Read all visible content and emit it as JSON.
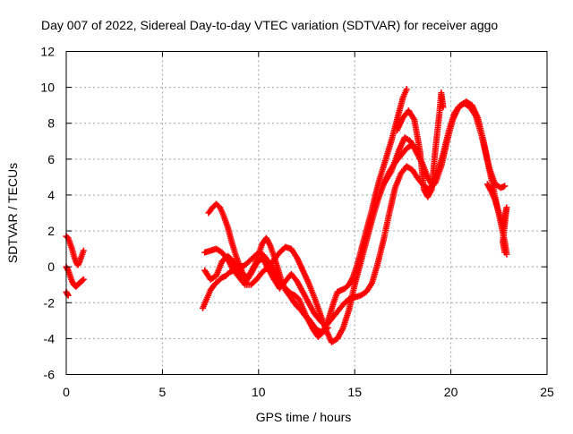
{
  "chart_data": {
    "type": "scatter",
    "title": "Day 007 of 2022, Sidereal Day-to-day VTEC variation (SDTVAR) for receiver aggo",
    "xlabel": "GPS time / hours",
    "ylabel": "SDTVAR / TECUs",
    "xlim": [
      0,
      25
    ],
    "ylim": [
      -6,
      12
    ],
    "xticks": [
      "0",
      "5",
      "10",
      "15",
      "20",
      "25"
    ],
    "yticks": [
      "-6",
      "-4",
      "-2",
      "0",
      "2",
      "4",
      "6",
      "8",
      "10",
      "12"
    ],
    "grid": true,
    "marker": "+",
    "color": "#ff0000",
    "series": [
      {
        "points": [
          [
            0.0,
            1.7
          ],
          [
            0.1,
            1.6
          ],
          [
            0.2,
            1.3
          ],
          [
            0.3,
            1.0
          ],
          [
            0.4,
            0.6
          ],
          [
            0.5,
            0.3
          ],
          [
            0.6,
            0.1
          ],
          [
            0.7,
            0.3
          ],
          [
            0.8,
            0.6
          ],
          [
            0.9,
            0.9
          ]
        ]
      },
      {
        "points": [
          [
            0.0,
            0.0
          ],
          [
            0.1,
            -0.2
          ],
          [
            0.2,
            -0.5
          ],
          [
            0.3,
            -0.8
          ],
          [
            0.4,
            -1.0
          ],
          [
            0.5,
            -1.1
          ],
          [
            0.6,
            -1.0
          ],
          [
            0.7,
            -0.9
          ],
          [
            0.8,
            -0.8
          ],
          [
            0.9,
            -0.7
          ]
        ]
      },
      {
        "points": [
          [
            0.0,
            -1.4
          ],
          [
            0.1,
            -1.6
          ]
        ]
      },
      {
        "points": [
          [
            7.1,
            -2.3
          ],
          [
            7.3,
            -1.8
          ],
          [
            7.5,
            -1.3
          ],
          [
            7.7,
            -1.0
          ],
          [
            7.9,
            -0.8
          ],
          [
            8.1,
            -0.6
          ],
          [
            8.3,
            -0.5
          ],
          [
            8.5,
            -0.3
          ],
          [
            8.7,
            -0.2
          ],
          [
            8.9,
            -0.1
          ],
          [
            9.1,
            0.0
          ],
          [
            9.3,
            0.1
          ],
          [
            9.5,
            0.3
          ],
          [
            9.7,
            0.5
          ],
          [
            9.9,
            0.7
          ],
          [
            10.1,
            0.8
          ],
          [
            10.3,
            0.6
          ],
          [
            10.5,
            0.3
          ],
          [
            10.7,
            0.0
          ],
          [
            10.9,
            -0.4
          ],
          [
            11.1,
            -0.8
          ],
          [
            11.3,
            -1.1
          ],
          [
            11.5,
            -1.3
          ],
          [
            11.7,
            -1.5
          ],
          [
            11.9,
            -1.6
          ],
          [
            12.1,
            -1.8
          ],
          [
            12.3,
            -2.3
          ],
          [
            12.5,
            -2.8
          ],
          [
            12.7,
            -3.2
          ],
          [
            12.9,
            -3.6
          ],
          [
            13.1,
            -3.9
          ],
          [
            13.3,
            -3.7
          ],
          [
            13.5,
            -3.3
          ],
          [
            13.7,
            -2.7
          ],
          [
            13.9,
            -2.0
          ],
          [
            14.1,
            -1.4
          ],
          [
            14.3,
            -1.3
          ],
          [
            14.5,
            -1.2
          ],
          [
            14.7,
            -1.0
          ],
          [
            14.9,
            -0.6
          ],
          [
            15.1,
            0.0
          ],
          [
            15.3,
            0.8
          ],
          [
            15.5,
            1.6
          ],
          [
            15.7,
            2.4
          ],
          [
            15.9,
            3.2
          ],
          [
            16.1,
            4.1
          ],
          [
            16.3,
            4.9
          ],
          [
            16.5,
            5.6
          ],
          [
            16.7,
            6.3
          ],
          [
            16.9,
            7.0
          ],
          [
            17.1,
            7.8
          ],
          [
            17.3,
            8.6
          ],
          [
            17.5,
            9.4
          ],
          [
            17.7,
            9.9
          ]
        ]
      },
      {
        "points": [
          [
            7.2,
            0.8
          ],
          [
            7.5,
            0.9
          ],
          [
            7.8,
            1.0
          ],
          [
            8.1,
            0.8
          ],
          [
            8.4,
            0.4
          ],
          [
            8.7,
            -0.2
          ],
          [
            9.0,
            -0.6
          ],
          [
            9.3,
            -1.0
          ],
          [
            9.6,
            -1.0
          ],
          [
            9.9,
            -0.7
          ],
          [
            10.2,
            -0.3
          ],
          [
            10.5,
            0.0
          ],
          [
            10.8,
            0.4
          ],
          [
            11.1,
            0.8
          ],
          [
            11.4,
            1.1
          ],
          [
            11.7,
            1.0
          ],
          [
            12.0,
            0.5
          ],
          [
            12.3,
            -0.2
          ],
          [
            12.6,
            -0.9
          ],
          [
            12.9,
            -1.7
          ],
          [
            13.2,
            -2.6
          ],
          [
            13.5,
            -3.5
          ],
          [
            13.8,
            -4.2
          ],
          [
            14.1,
            -4.0
          ],
          [
            14.4,
            -3.4
          ],
          [
            14.7,
            -2.4
          ],
          [
            15.0,
            -1.0
          ],
          [
            15.3,
            0.2
          ],
          [
            15.6,
            1.4
          ],
          [
            15.9,
            2.6
          ],
          [
            16.2,
            3.7
          ],
          [
            16.5,
            4.6
          ],
          [
            16.8,
            5.3
          ],
          [
            17.1,
            5.8
          ],
          [
            17.4,
            6.2
          ],
          [
            17.7,
            6.6
          ],
          [
            18.0,
            6.8
          ],
          [
            18.3,
            6.5
          ]
        ]
      },
      {
        "points": [
          [
            7.2,
            -0.2
          ],
          [
            7.5,
            -0.7
          ],
          [
            7.8,
            -0.5
          ],
          [
            8.1,
            0.3
          ],
          [
            8.4,
            0.6
          ],
          [
            8.7,
            0.3
          ],
          [
            9.0,
            -0.4
          ],
          [
            9.3,
            -0.9
          ],
          [
            9.6,
            -0.4
          ],
          [
            9.9,
            0.2
          ],
          [
            10.2,
            0.5
          ],
          [
            10.5,
            -0.1
          ],
          [
            10.8,
            -0.7
          ],
          [
            11.1,
            -1.2
          ],
          [
            11.4,
            -0.8
          ],
          [
            11.7,
            -0.4
          ],
          [
            12.0,
            -0.8
          ],
          [
            12.3,
            -1.4
          ],
          [
            12.6,
            -2.0
          ],
          [
            12.9,
            -2.6
          ],
          [
            13.2,
            -3.0
          ],
          [
            13.5,
            -3.3
          ],
          [
            13.8,
            -2.9
          ],
          [
            14.1,
            -2.5
          ],
          [
            14.4,
            -2.1
          ],
          [
            14.7,
            -1.8
          ],
          [
            15.0,
            -1.7
          ],
          [
            15.3,
            -1.6
          ],
          [
            15.6,
            -1.4
          ],
          [
            15.9,
            -0.9
          ],
          [
            16.2,
            0.2
          ],
          [
            16.5,
            1.5
          ],
          [
            16.8,
            3.0
          ],
          [
            17.1,
            4.4
          ],
          [
            17.4,
            5.2
          ],
          [
            17.7,
            5.6
          ],
          [
            18.0,
            5.4
          ],
          [
            18.3,
            4.9
          ],
          [
            18.6,
            4.5
          ],
          [
            18.9,
            4.3
          ],
          [
            19.2,
            4.7
          ],
          [
            19.5,
            5.6
          ],
          [
            19.8,
            7.0
          ],
          [
            20.1,
            8.2
          ],
          [
            20.4,
            8.9
          ],
          [
            20.7,
            9.1
          ],
          [
            21.0,
            8.9
          ],
          [
            21.3,
            8.4
          ],
          [
            21.6,
            7.3
          ],
          [
            21.9,
            5.9
          ],
          [
            22.2,
            4.4
          ],
          [
            22.5,
            2.9
          ],
          [
            22.8,
            1.4
          ],
          [
            22.9,
            0.7
          ]
        ]
      },
      {
        "points": [
          [
            7.4,
            3.0
          ],
          [
            7.6,
            3.3
          ],
          [
            7.8,
            3.5
          ],
          [
            8.0,
            3.3
          ],
          [
            8.2,
            2.8
          ],
          [
            8.4,
            2.2
          ],
          [
            8.6,
            1.4
          ],
          [
            8.8,
            0.7
          ],
          [
            9.0,
            0.1
          ],
          [
            9.2,
            -0.4
          ],
          [
            9.4,
            -0.6
          ],
          [
            9.6,
            -0.3
          ],
          [
            9.8,
            0.1
          ],
          [
            10.0,
            0.7
          ],
          [
            10.2,
            1.3
          ],
          [
            10.4,
            1.6
          ],
          [
            10.6,
            1.2
          ],
          [
            10.8,
            0.6
          ],
          [
            11.0,
            -0.1
          ],
          [
            11.2,
            -0.8
          ],
          [
            11.4,
            -1.3
          ],
          [
            11.6,
            -1.6
          ],
          [
            11.8,
            -1.9
          ],
          [
            12.0,
            -2.2
          ],
          [
            12.2,
            -2.4
          ],
          [
            12.4,
            -2.7
          ],
          [
            12.6,
            -2.9
          ],
          [
            12.8,
            -3.2
          ],
          [
            13.0,
            -3.5
          ],
          [
            13.2,
            -3.6
          ],
          [
            13.4,
            -3.6
          ],
          [
            13.6,
            -3.4
          ]
        ]
      },
      {
        "points": [
          [
            16.5,
            4.6
          ],
          [
            16.9,
            5.3
          ],
          [
            17.3,
            6.5
          ],
          [
            17.6,
            7.2
          ],
          [
            17.9,
            7.0
          ],
          [
            18.2,
            6.4
          ],
          [
            18.5,
            5.8
          ],
          [
            18.8,
            5.0
          ],
          [
            19.0,
            4.6
          ],
          [
            19.3,
            5.2
          ],
          [
            19.6,
            6.3
          ],
          [
            19.9,
            7.6
          ],
          [
            20.2,
            8.6
          ],
          [
            20.5,
            9.0
          ],
          [
            20.8,
            9.2
          ],
          [
            21.1,
            9.0
          ],
          [
            21.4,
            8.3
          ],
          [
            21.7,
            7.0
          ],
          [
            22.0,
            5.5
          ],
          [
            22.3,
            4.6
          ],
          [
            22.6,
            4.4
          ],
          [
            22.8,
            4.5
          ]
        ]
      },
      {
        "points": [
          [
            17.2,
            7.6
          ],
          [
            17.5,
            8.3
          ],
          [
            17.8,
            8.7
          ],
          [
            18.1,
            8.2
          ],
          [
            18.4,
            6.4
          ],
          [
            18.6,
            4.3
          ],
          [
            18.8,
            3.9
          ],
          [
            19.0,
            4.3
          ],
          [
            19.2,
            6.6
          ],
          [
            19.4,
            8.5
          ],
          [
            19.5,
            9.7
          ],
          [
            19.6,
            8.9
          ]
        ]
      },
      {
        "points": [
          [
            21.9,
            4.6
          ],
          [
            22.1,
            4.2
          ],
          [
            22.3,
            3.7
          ],
          [
            22.5,
            3.0
          ],
          [
            22.7,
            2.3
          ],
          [
            22.8,
            2.8
          ],
          [
            22.9,
            3.3
          ],
          [
            22.7,
            1.4
          ],
          [
            22.8,
            0.8
          ]
        ]
      }
    ]
  }
}
